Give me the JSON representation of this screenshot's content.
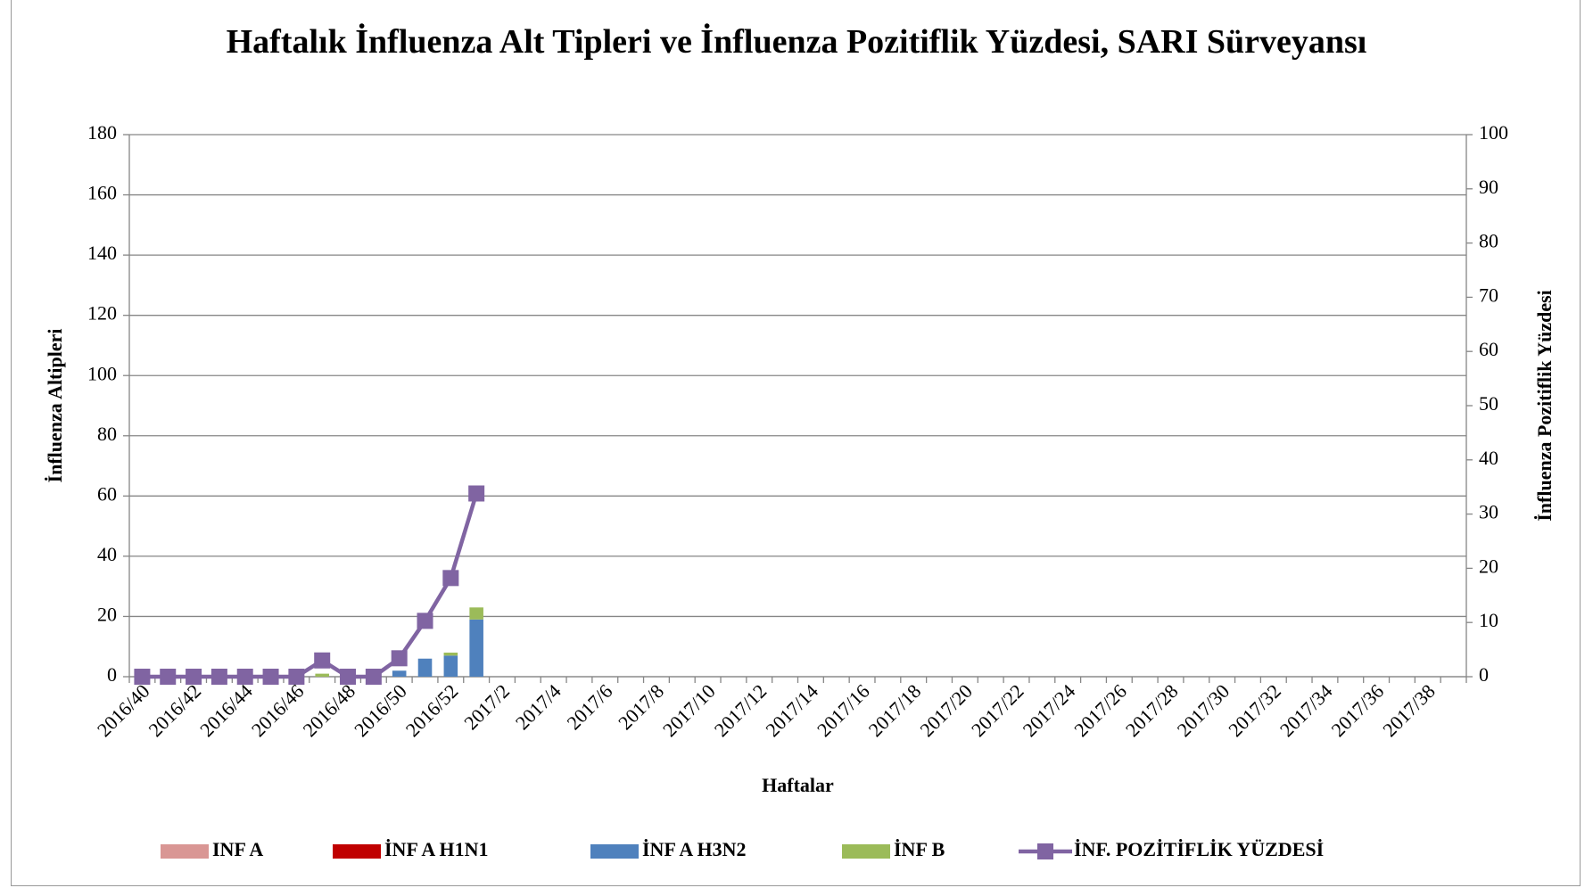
{
  "chart_data": {
    "type": "bar",
    "title": "Haftalık İnfluenza Alt Tipleri ve İnfluenza Pozitiflik Yüzdesi, SARI Sürveyansı",
    "x_label": "Haftalar",
    "y_label": "İnfluenza Altipleri",
    "y2_label": "İnfluenza Pozitiflik Yüzdesi",
    "categories": [
      "2016/40",
      null,
      "2016/42",
      null,
      "2016/44",
      null,
      "2016/46",
      null,
      "2016/48",
      null,
      "2016/50",
      null,
      "2016/52",
      null,
      "2017/2",
      null,
      "2017/4",
      null,
      "2017/6",
      null,
      "2017/8",
      null,
      "2017/10",
      null,
      "2017/12",
      null,
      "2017/14",
      null,
      "2017/16",
      null,
      "2017/18",
      null,
      "2017/20",
      null,
      "2017/22",
      null,
      "2017/24",
      null,
      "2017/26",
      null,
      "2017/28",
      null,
      "2017/30",
      null,
      "2017/32",
      null,
      "2017/34",
      null,
      "2017/36",
      null,
      "2017/38",
      null
    ],
    "stacked": true,
    "series": [
      {
        "name": "INF A",
        "color": "#d99694",
        "type": "bar",
        "values": [
          0,
          0,
          0,
          0,
          0,
          0,
          0,
          0,
          0,
          0,
          0,
          0,
          0,
          0,
          null,
          null,
          null,
          null,
          null,
          null,
          null,
          null,
          null,
          null,
          null,
          null,
          null,
          null,
          null,
          null,
          null,
          null,
          null,
          null,
          null,
          null,
          null,
          null,
          null,
          null,
          null,
          null,
          null,
          null,
          null,
          null,
          null,
          null,
          null,
          null,
          null,
          null
        ]
      },
      {
        "name": "İNF A H1N1",
        "color": "#c00000",
        "type": "bar",
        "values": [
          0,
          0,
          0,
          0,
          0,
          0,
          0,
          0,
          0,
          0,
          0,
          0,
          0,
          0,
          null,
          null,
          null,
          null,
          null,
          null,
          null,
          null,
          null,
          null,
          null,
          null,
          null,
          null,
          null,
          null,
          null,
          null,
          null,
          null,
          null,
          null,
          null,
          null,
          null,
          null,
          null,
          null,
          null,
          null,
          null,
          null,
          null,
          null,
          null,
          null,
          null,
          null
        ]
      },
      {
        "name": "İNF A H3N2",
        "color": "#4f81bd",
        "type": "bar",
        "values": [
          0,
          0,
          0,
          0,
          0,
          0,
          0,
          0,
          0,
          0,
          2,
          6,
          7,
          19,
          null,
          null,
          null,
          null,
          null,
          null,
          null,
          null,
          null,
          null,
          null,
          null,
          null,
          null,
          null,
          null,
          null,
          null,
          null,
          null,
          null,
          null,
          null,
          null,
          null,
          null,
          null,
          null,
          null,
          null,
          null,
          null,
          null,
          null,
          null,
          null,
          null,
          null
        ]
      },
      {
        "name": "İNF B",
        "color": "#9bbb59",
        "type": "bar",
        "values": [
          0,
          0,
          0,
          0,
          0,
          0,
          0,
          1,
          0,
          0,
          0,
          0,
          1,
          4,
          null,
          null,
          null,
          null,
          null,
          null,
          null,
          null,
          null,
          null,
          null,
          null,
          null,
          null,
          null,
          null,
          null,
          null,
          null,
          null,
          null,
          null,
          null,
          null,
          null,
          null,
          null,
          null,
          null,
          null,
          null,
          null,
          null,
          null,
          null,
          null,
          null,
          null
        ]
      },
      {
        "name": "İNF. POZİTİFLİK YÜZDESİ",
        "color": "#8064a2",
        "type": "line",
        "axis": "y2",
        "values": [
          0,
          0,
          0,
          0,
          0,
          0,
          0,
          3,
          0,
          0,
          3.4,
          10.3,
          18.2,
          33.8,
          null,
          null,
          null,
          null,
          null,
          null,
          null,
          null,
          null,
          null,
          null,
          null,
          null,
          null,
          null,
          null,
          null,
          null,
          null,
          null,
          null,
          null,
          null,
          null,
          null,
          null,
          null,
          null,
          null,
          null,
          null,
          null,
          null,
          null,
          null,
          null,
          null,
          null
        ]
      }
    ],
    "ylim": [
      0,
      180
    ],
    "yticks": [
      0,
      20,
      40,
      60,
      80,
      100,
      120,
      140,
      160,
      180
    ],
    "y2lim": [
      0,
      100
    ],
    "y2ticks": [
      0,
      10,
      20,
      30,
      40,
      50,
      60,
      70,
      80,
      90,
      100
    ],
    "grid": true,
    "legend": "bottom"
  }
}
